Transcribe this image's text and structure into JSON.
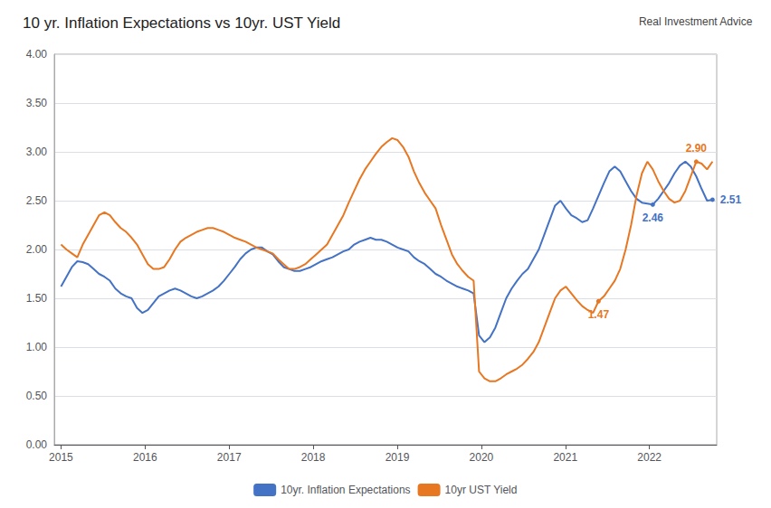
{
  "chart_data": {
    "type": "line",
    "title": "10 yr. Inflation Expectations vs 10yr. UST Yield",
    "watermark": "Real Investment Advice",
    "x": [
      2015,
      2015.064583,
      2015.129167,
      2015.19375,
      2015.258333,
      2015.322917,
      2015.3875,
      2015.452083,
      2015.516667,
      2015.58125,
      2015.645833,
      2015.710417,
      2015.775,
      2015.839583,
      2015.904167,
      2015.96875,
      2016.033333,
      2016.097917,
      2016.1625,
      2016.227083,
      2016.291667,
      2016.35625,
      2016.420833,
      2016.485417,
      2016.55,
      2016.614583,
      2016.679167,
      2016.74375,
      2016.808333,
      2016.872917,
      2016.9375,
      2017.002083,
      2017.066667,
      2017.13125,
      2017.195833,
      2017.260417,
      2017.325,
      2017.389583,
      2017.454167,
      2017.51875,
      2017.583333,
      2017.647917,
      2017.7125,
      2017.777083,
      2017.841667,
      2017.90625,
      2017.970833,
      2018.035417,
      2018.1,
      2018.164583,
      2018.229167,
      2018.29375,
      2018.358333,
      2018.422917,
      2018.4875,
      2018.552083,
      2018.616667,
      2018.68125,
      2018.745833,
      2018.810417,
      2018.875,
      2018.939583,
      2019.004167,
      2019.06875,
      2019.133333,
      2019.197917,
      2019.2625,
      2019.327083,
      2019.391667,
      2019.45625,
      2019.520833,
      2019.585417,
      2019.65,
      2019.714583,
      2019.779167,
      2019.84375,
      2019.908333,
      2019.972917,
      2020.0375,
      2020.102083,
      2020.166667,
      2020.23125,
      2020.295833,
      2020.360417,
      2020.425,
      2020.489583,
      2020.554167,
      2020.61875,
      2020.683333,
      2020.747917,
      2020.8125,
      2020.877083,
      2020.941667,
      2021.00625,
      2021.070833,
      2021.135417,
      2021.2,
      2021.264583,
      2021.329167,
      2021.39375,
      2021.458333,
      2021.522917,
      2021.5875,
      2021.652083,
      2021.716667,
      2021.78125,
      2021.845833,
      2021.910417,
      2021.975,
      2022.039583,
      2022.104167,
      2022.16875,
      2022.233333,
      2022.297917,
      2022.3625,
      2022.427083,
      2022.491667,
      2022.55625,
      2022.620833,
      2022.685417,
      2022.75
    ],
    "series": [
      {
        "name": "10yr. Inflation Expectations",
        "color": "#4472C4",
        "values": [
          1.62,
          1.72,
          1.82,
          1.88,
          1.87,
          1.85,
          1.8,
          1.75,
          1.72,
          1.68,
          1.6,
          1.55,
          1.52,
          1.5,
          1.4,
          1.35,
          1.38,
          1.45,
          1.52,
          1.55,
          1.58,
          1.6,
          1.58,
          1.55,
          1.52,
          1.5,
          1.52,
          1.55,
          1.58,
          1.62,
          1.68,
          1.75,
          1.82,
          1.9,
          1.96,
          2.0,
          2.02,
          2.02,
          1.98,
          1.95,
          1.88,
          1.82,
          1.8,
          1.78,
          1.78,
          1.8,
          1.82,
          1.85,
          1.88,
          1.9,
          1.92,
          1.95,
          1.98,
          2.0,
          2.05,
          2.08,
          2.1,
          2.12,
          2.1,
          2.1,
          2.08,
          2.05,
          2.02,
          2.0,
          1.98,
          1.92,
          1.88,
          1.85,
          1.8,
          1.75,
          1.72,
          1.68,
          1.65,
          1.62,
          1.6,
          1.58,
          1.55,
          1.12,
          1.05,
          1.1,
          1.2,
          1.35,
          1.5,
          1.6,
          1.68,
          1.75,
          1.8,
          1.9,
          2.0,
          2.15,
          2.3,
          2.45,
          2.5,
          2.42,
          2.35,
          2.32,
          2.28,
          2.3,
          2.42,
          2.55,
          2.68,
          2.8,
          2.85,
          2.8,
          2.7,
          2.6,
          2.52,
          2.48,
          2.47,
          2.46,
          2.52,
          2.6,
          2.68,
          2.78,
          2.86,
          2.9,
          2.85,
          2.75,
          2.62,
          2.5,
          2.51
        ]
      },
      {
        "name": "10yr UST Yield",
        "color": "#E87722",
        "values": [
          2.05,
          2.0,
          1.96,
          1.92,
          2.05,
          2.15,
          2.25,
          2.35,
          2.38,
          2.35,
          2.28,
          2.22,
          2.18,
          2.12,
          2.05,
          1.95,
          1.85,
          1.8,
          1.8,
          1.82,
          1.9,
          2.0,
          2.08,
          2.12,
          2.15,
          2.18,
          2.2,
          2.22,
          2.22,
          2.2,
          2.18,
          2.15,
          2.12,
          2.1,
          2.08,
          2.05,
          2.02,
          2.0,
          1.98,
          1.96,
          1.9,
          1.85,
          1.8,
          1.8,
          1.82,
          1.85,
          1.9,
          1.95,
          2.0,
          2.05,
          2.15,
          2.25,
          2.35,
          2.48,
          2.6,
          2.72,
          2.82,
          2.9,
          2.98,
          3.05,
          3.1,
          3.14,
          3.12,
          3.05,
          2.95,
          2.8,
          2.68,
          2.58,
          2.5,
          2.42,
          2.25,
          2.1,
          1.95,
          1.85,
          1.78,
          1.72,
          1.68,
          0.75,
          0.68,
          0.65,
          0.65,
          0.68,
          0.72,
          0.75,
          0.78,
          0.82,
          0.88,
          0.95,
          1.05,
          1.2,
          1.35,
          1.5,
          1.58,
          1.62,
          1.55,
          1.48,
          1.42,
          1.38,
          1.35,
          1.47,
          1.52,
          1.6,
          1.68,
          1.8,
          2.0,
          2.25,
          2.55,
          2.78,
          2.9,
          2.82,
          2.7,
          2.6,
          2.52,
          2.48,
          2.5,
          2.6,
          2.75,
          2.9,
          2.88,
          2.82,
          2.9
        ]
      }
    ],
    "annotations": [
      {
        "text": "2.46",
        "series": "10yr. Inflation Expectations",
        "x": 2022.039583,
        "y": 2.46
      },
      {
        "text": "2.51",
        "series": "10yr. Inflation Expectations",
        "x": 2022.75,
        "y": 2.51
      },
      {
        "text": "1.47",
        "series": "10yr UST Yield",
        "x": 2021.39375,
        "y": 1.47
      },
      {
        "text": "2.90",
        "series": "10yr UST Yield",
        "x": 2022.55625,
        "y": 2.9
      }
    ],
    "xlim": [
      2014.92,
      2022.8
    ],
    "xticks": [
      2015,
      2016,
      2017,
      2018,
      2019,
      2020,
      2021,
      2022
    ],
    "ylim": [
      0.0,
      4.0
    ],
    "yticks": [
      {
        "value": 0.0,
        "label": "0.00"
      },
      {
        "value": 0.5,
        "label": "0.50"
      },
      {
        "value": 1.0,
        "label": "1.00"
      },
      {
        "value": 1.5,
        "label": "1.50"
      },
      {
        "value": 2.0,
        "label": "2.00"
      },
      {
        "value": 2.5,
        "label": "2.50"
      },
      {
        "value": 3.0,
        "label": "3.00"
      },
      {
        "value": 3.5,
        "label": "3.50"
      },
      {
        "value": 4.0,
        "label": "4.00"
      }
    ],
    "grid": true,
    "legend": "bottom"
  }
}
